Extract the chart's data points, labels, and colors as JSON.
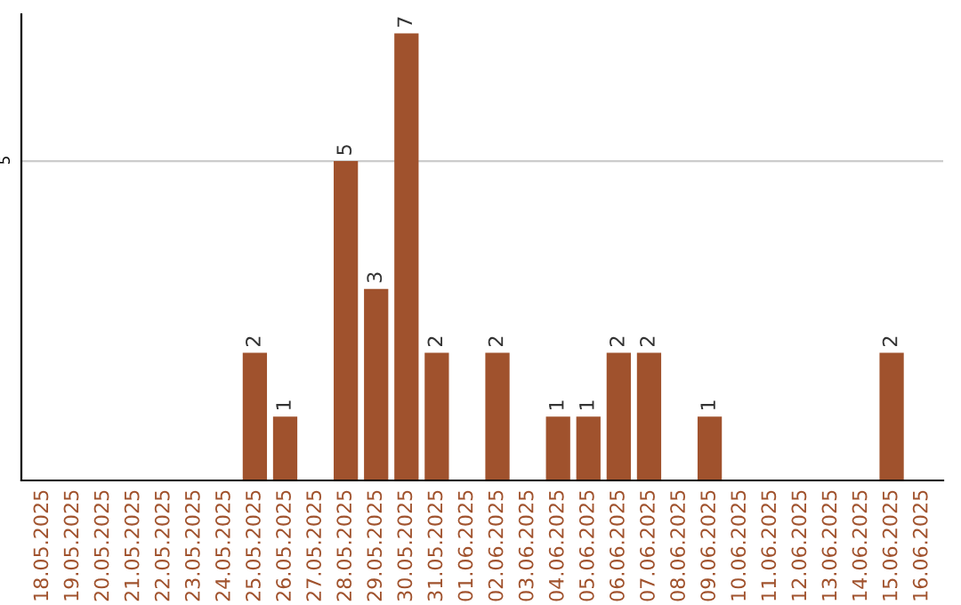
{
  "chart_data": {
    "type": "bar",
    "categories": [
      "18.05.2025",
      "19.05.2025",
      "20.05.2025",
      "21.05.2025",
      "22.05.2025",
      "23.05.2025",
      "24.05.2025",
      "25.05.2025",
      "26.05.2025",
      "27.05.2025",
      "28.05.2025",
      "29.05.2025",
      "30.05.2025",
      "31.05.2025",
      "01.06.2025",
      "02.06.2025",
      "03.06.2025",
      "04.06.2025",
      "05.06.2025",
      "06.06.2025",
      "07.06.2025",
      "08.06.2025",
      "09.06.2025",
      "10.06.2025",
      "11.06.2025",
      "12.06.2025",
      "13.06.2025",
      "14.06.2025",
      "15.06.2025",
      "16.06.2025"
    ],
    "values": [
      0,
      0,
      0,
      0,
      0,
      0,
      0,
      2,
      1,
      0,
      5,
      3,
      7,
      2,
      0,
      2,
      0,
      1,
      1,
      2,
      2,
      0,
      1,
      0,
      0,
      0,
      0,
      0,
      2,
      0
    ],
    "value_labels": [
      null,
      null,
      null,
      null,
      null,
      null,
      null,
      "2",
      "1",
      null,
      "5",
      "3",
      "7",
      "2",
      null,
      "2",
      null,
      "1",
      "1",
      "2",
      "2",
      null,
      "1",
      null,
      null,
      null,
      null,
      null,
      "2",
      null
    ],
    "color": "#a0522d",
    "ylim": [
      0,
      7.3
    ],
    "yticks": [
      5
    ],
    "grid": "y"
  }
}
